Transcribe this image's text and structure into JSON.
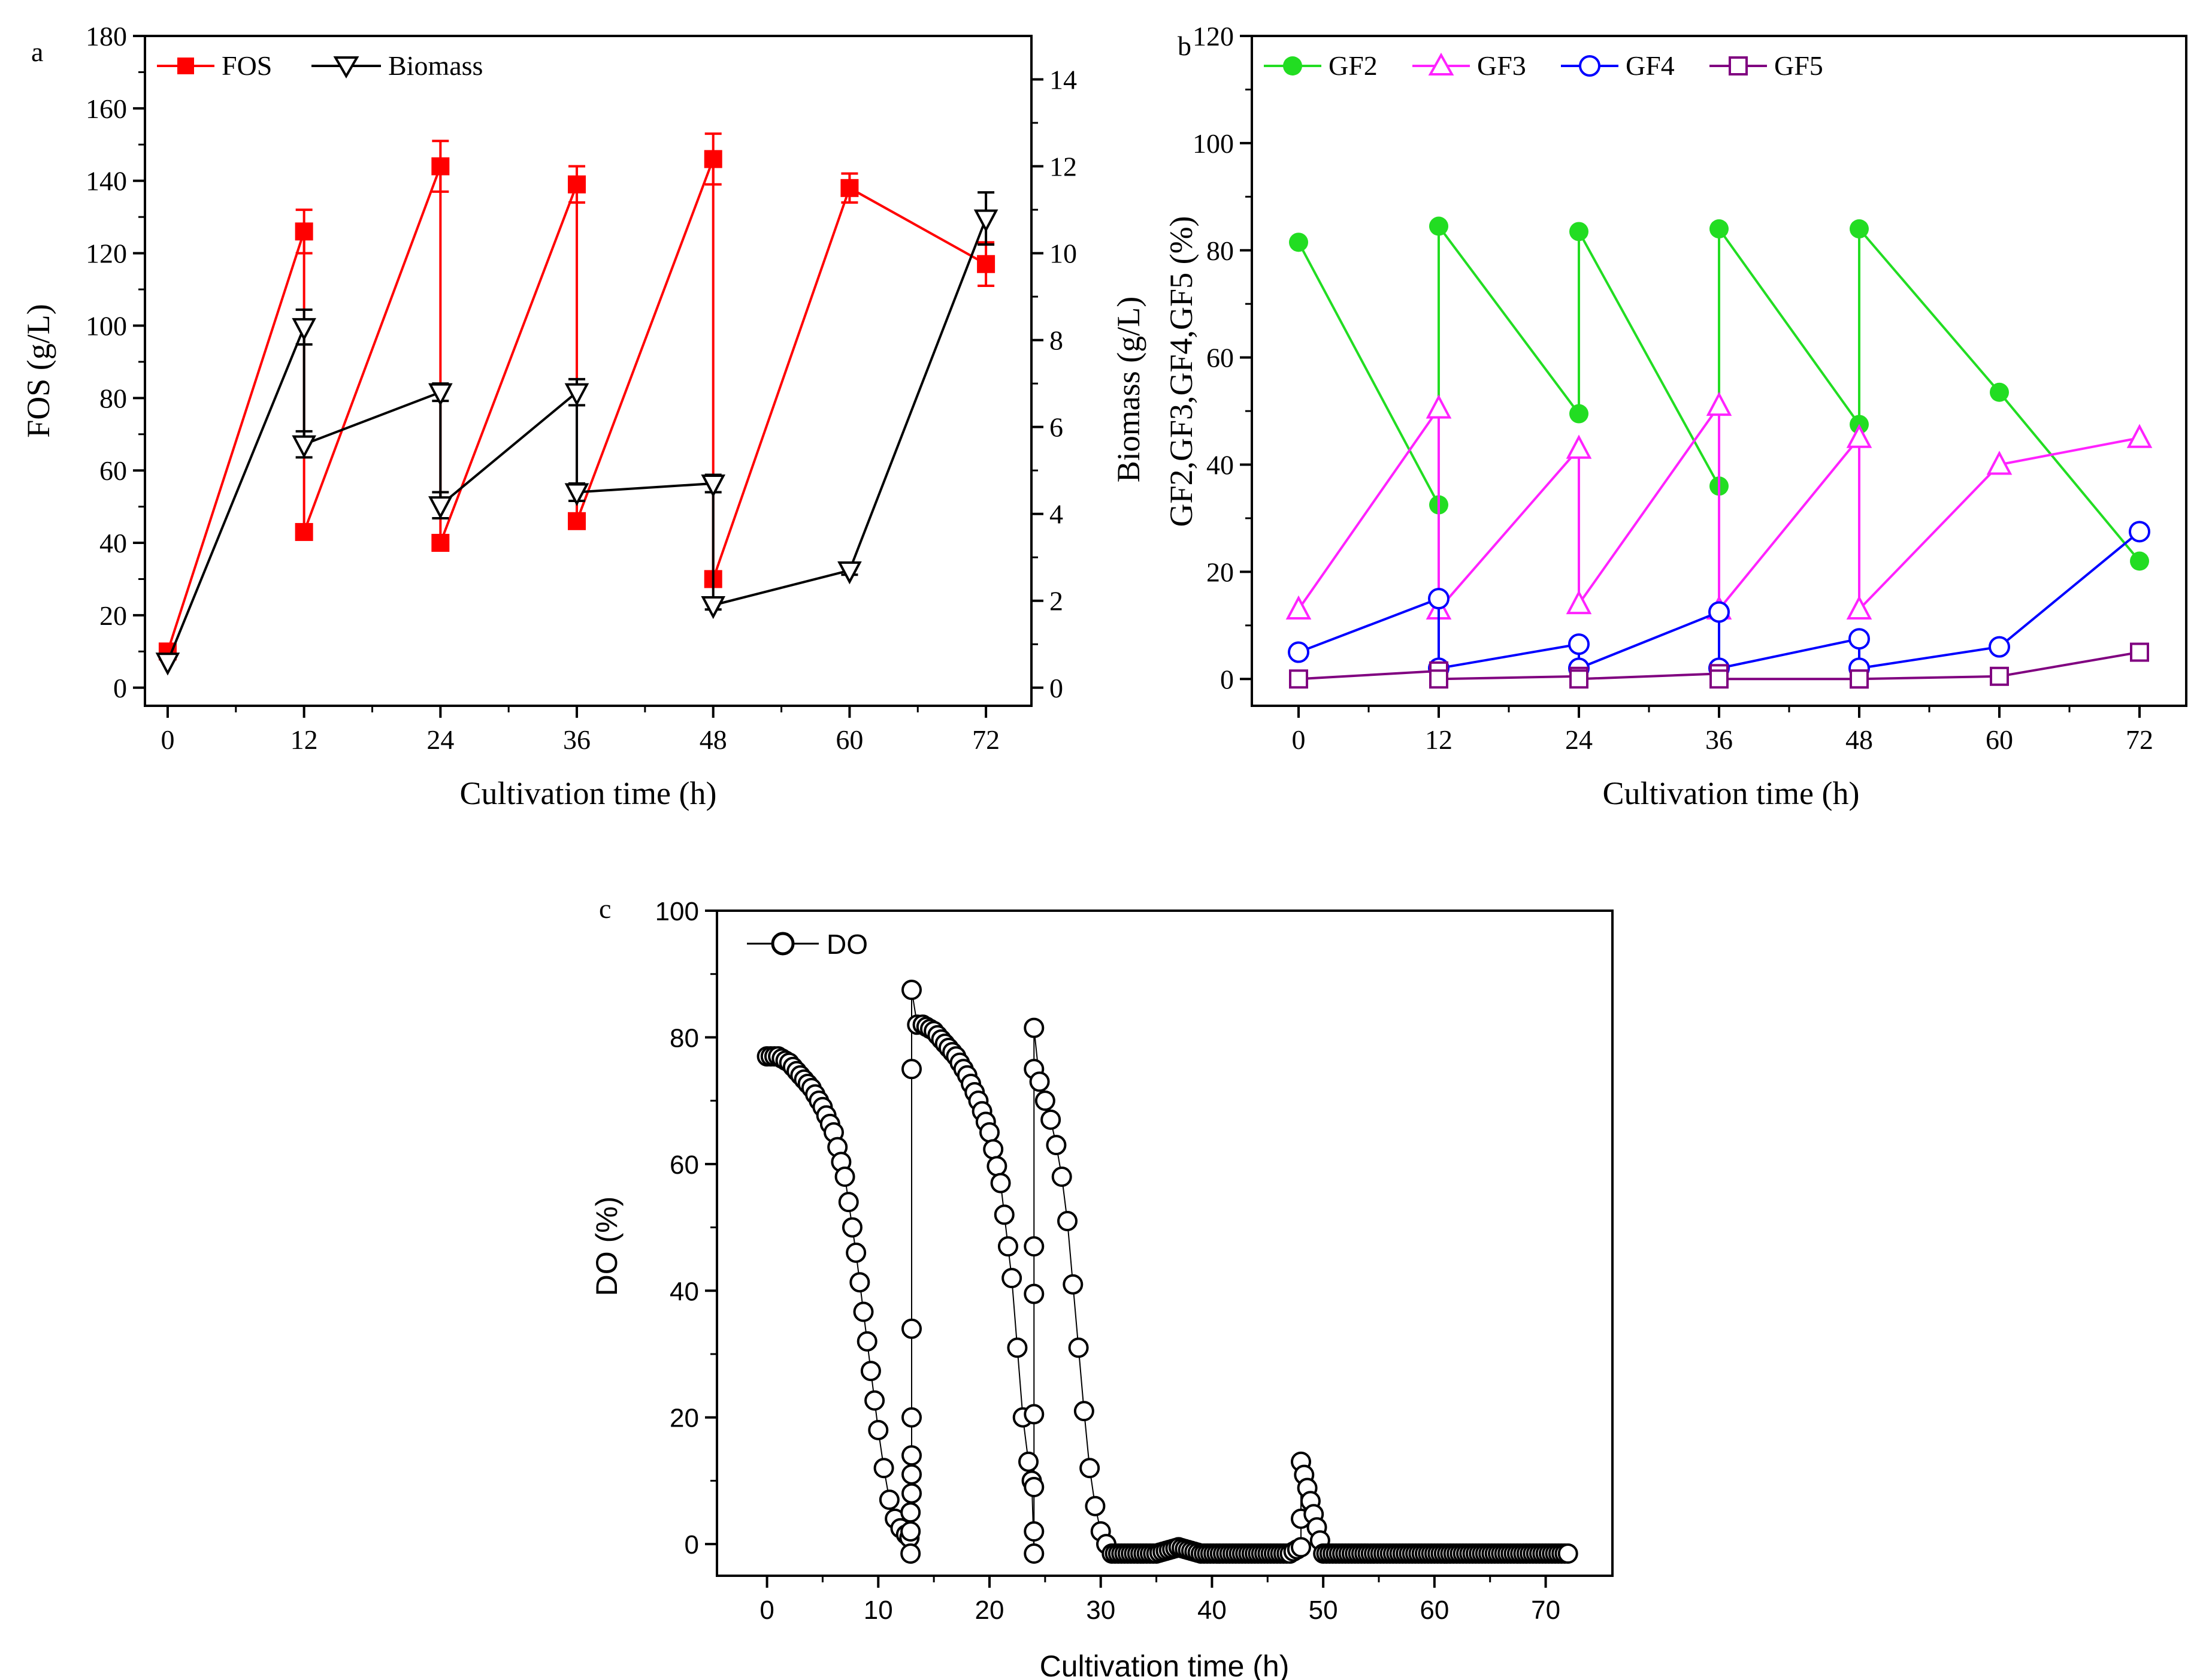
{
  "chart_data": [
    {
      "panel": "a",
      "type": "line",
      "xlabel": "Cultivation time (h)",
      "ylabel": "FOS (g/L)",
      "y2label": "Biomass (g/L)",
      "xlim": [
        -2,
        76
      ],
      "ylim": [
        -5,
        180
      ],
      "y2lim": [
        -0.4167,
        15
      ],
      "xticks": [
        "0",
        "12",
        "24",
        "36",
        "48",
        "60",
        "72"
      ],
      "xtick_values": [
        0,
        12,
        24,
        36,
        48,
        60,
        72
      ],
      "yticks": [
        "0",
        "20",
        "40",
        "60",
        "80",
        "100",
        "120",
        "140",
        "160",
        "180"
      ],
      "ytick_values": [
        0,
        20,
        40,
        60,
        80,
        100,
        120,
        140,
        160,
        180
      ],
      "y2ticks": [
        "0",
        "2",
        "4",
        "6",
        "8",
        "10",
        "12",
        "14"
      ],
      "y2tick_values": [
        0,
        2,
        4,
        6,
        8,
        10,
        12,
        14
      ],
      "legend_position": "top-left",
      "series": [
        {
          "name": "FOS",
          "axis": "left",
          "color": "#ff0000",
          "marker": "filled-square",
          "points": [
            [
              0,
              10,
              0
            ],
            [
              12,
              126,
              6
            ],
            [
              12,
              43,
              0
            ],
            [
              24,
              144,
              7
            ],
            [
              24,
              40,
              0
            ],
            [
              36,
              139,
              5
            ],
            [
              36,
              46,
              0
            ],
            [
              48,
              146,
              7
            ],
            [
              48,
              30,
              0
            ],
            [
              60,
              138,
              4
            ],
            [
              72,
              117,
              6
            ]
          ]
        },
        {
          "name": "Biomass",
          "axis": "right",
          "color": "#000000",
          "marker": "open-down-triangle",
          "points": [
            [
              0,
              0.6,
              0
            ],
            [
              12,
              8.3,
              0.4
            ],
            [
              12,
              5.6,
              0.3
            ],
            [
              24,
              6.8,
              0.2
            ],
            [
              24,
              4.2,
              0.3
            ],
            [
              36,
              6.8,
              0.3
            ],
            [
              36,
              4.5,
              0.2
            ],
            [
              48,
              4.7,
              0.2
            ],
            [
              48,
              1.9,
              0.1
            ],
            [
              60,
              2.7,
              0.1
            ],
            [
              72,
              10.8,
              0.6
            ]
          ]
        }
      ]
    },
    {
      "panel": "b",
      "type": "line",
      "xlabel": "Cultivation time (h)",
      "ylabel": "GF2,GF3,GF4,GF5 (%)",
      "xlim": [
        -4,
        76
      ],
      "ylim": [
        -5,
        120
      ],
      "xticks": [
        "0",
        "12",
        "24",
        "36",
        "48",
        "60",
        "72"
      ],
      "xtick_values": [
        0,
        12,
        24,
        36,
        48,
        60,
        72
      ],
      "yticks": [
        "0",
        "20",
        "40",
        "60",
        "80",
        "100",
        "120"
      ],
      "ytick_values": [
        0,
        20,
        40,
        60,
        80,
        100,
        120
      ],
      "legend_position": "top",
      "series": [
        {
          "name": "GF2",
          "color": "#22dd22",
          "marker": "filled-circle",
          "points": [
            [
              0,
              81.5
            ],
            [
              12,
              32.5
            ],
            [
              12,
              84.5
            ],
            [
              24,
              49.5
            ],
            [
              24,
              83.5
            ],
            [
              36,
              36
            ],
            [
              36,
              84
            ],
            [
              48,
              47.5
            ],
            [
              48,
              84
            ],
            [
              60,
              53.5
            ],
            [
              72,
              22
            ]
          ]
        },
        {
          "name": "GF3",
          "color": "#ff22ff",
          "marker": "open-up-triangle",
          "points": [
            [
              0,
              13
            ],
            [
              12,
              50.5
            ],
            [
              12,
              13
            ],
            [
              24,
              43
            ],
            [
              24,
              14
            ],
            [
              36,
              51
            ],
            [
              36,
              13
            ],
            [
              48,
              45
            ],
            [
              48,
              13
            ],
            [
              60,
              40
            ],
            [
              72,
              45
            ]
          ]
        },
        {
          "name": "GF4",
          "color": "#0000ff",
          "marker": "open-circle",
          "points": [
            [
              0,
              5
            ],
            [
              12,
              15
            ],
            [
              12,
              2
            ],
            [
              24,
              6.5
            ],
            [
              24,
              2
            ],
            [
              36,
              12.5
            ],
            [
              36,
              2
            ],
            [
              48,
              7.5
            ],
            [
              48,
              2
            ],
            [
              60,
              6
            ],
            [
              72,
              27.5
            ]
          ]
        },
        {
          "name": "GF5",
          "color": "#800080",
          "marker": "open-square",
          "points": [
            [
              0,
              0
            ],
            [
              12,
              1.5
            ],
            [
              12,
              0
            ],
            [
              24,
              0.5
            ],
            [
              24,
              0
            ],
            [
              36,
              1
            ],
            [
              36,
              0
            ],
            [
              48,
              0
            ],
            [
              48,
              0
            ],
            [
              60,
              0.5
            ],
            [
              72,
              5
            ]
          ]
        }
      ]
    },
    {
      "panel": "c",
      "type": "scatter",
      "xlabel": "Cultivation time (h)",
      "ylabel": "DO (%)",
      "xlim": [
        -4.5,
        76
      ],
      "ylim": [
        -5,
        100
      ],
      "xticks": [
        "0",
        "10",
        "20",
        "30",
        "40",
        "50",
        "60",
        "70"
      ],
      "xtick_values": [
        0,
        10,
        20,
        30,
        40,
        50,
        60,
        70
      ],
      "yticks": [
        "0",
        "20",
        "40",
        "60",
        "80",
        "100"
      ],
      "ytick_values": [
        0,
        20,
        40,
        60,
        80,
        100
      ],
      "legend_position": "top-left",
      "series": [
        {
          "name": "DO",
          "color": "#000000",
          "marker": "open-circle",
          "points": [
            [
              0,
              77
            ],
            [
              1,
              77
            ],
            [
              2,
              76
            ],
            [
              3,
              74
            ],
            [
              4,
              72
            ],
            [
              5,
              69
            ],
            [
              6,
              65
            ],
            [
              7,
              58
            ],
            [
              8,
              46
            ],
            [
              9,
              32
            ],
            [
              10,
              18
            ],
            [
              10.5,
              12
            ],
            [
              11,
              7
            ],
            [
              11.5,
              4
            ],
            [
              12,
              2.5
            ],
            [
              12.5,
              1.5
            ],
            [
              12.8,
              1
            ],
            [
              12.9,
              -1.5
            ],
            [
              12.9,
              2
            ],
            [
              12.9,
              5
            ],
            [
              13,
              8
            ],
            [
              13,
              11
            ],
            [
              13,
              14
            ],
            [
              13,
              20
            ],
            [
              13,
              34
            ],
            [
              13,
              75
            ],
            [
              13,
              87.5
            ],
            [
              13.5,
              82
            ],
            [
              14,
              82
            ],
            [
              15,
              81
            ],
            [
              16,
              79
            ],
            [
              17,
              77
            ],
            [
              18,
              74
            ],
            [
              19,
              70
            ],
            [
              20,
              65
            ],
            [
              21,
              57
            ],
            [
              22,
              42
            ],
            [
              22.5,
              31
            ],
            [
              23,
              20
            ],
            [
              23.5,
              13
            ],
            [
              23.8,
              10
            ],
            [
              24,
              -1.5
            ],
            [
              24,
              2
            ],
            [
              24,
              9
            ],
            [
              24,
              20.5
            ],
            [
              24,
              39.5
            ],
            [
              24,
              47
            ],
            [
              24,
              75
            ],
            [
              24,
              81.5
            ],
            [
              24.5,
              73
            ],
            [
              25,
              70
            ],
            [
              25.5,
              67
            ],
            [
              26,
              63
            ],
            [
              26.5,
              58
            ],
            [
              27,
              51
            ],
            [
              27.5,
              41
            ],
            [
              28,
              31
            ],
            [
              28.5,
              21
            ],
            [
              29,
              12
            ],
            [
              29.5,
              6
            ],
            [
              30,
              2
            ],
            [
              30.5,
              0
            ],
            [
              31,
              -1.5
            ],
            [
              33,
              -1.5
            ],
            [
              35,
              -1.5
            ],
            [
              37,
              -0.5
            ],
            [
              39,
              -1.5
            ],
            [
              41,
              -1.5
            ],
            [
              43,
              -1.5
            ],
            [
              45,
              -1.5
            ],
            [
              47,
              -1.5
            ],
            [
              48,
              -0.5
            ],
            [
              48,
              4
            ],
            [
              48,
              13
            ],
            [
              50,
              -1.5
            ],
            [
              52,
              -1.5
            ],
            [
              54,
              -1.5
            ],
            [
              56,
              -1.5
            ],
            [
              58,
              -1.5
            ],
            [
              60,
              -1.5
            ],
            [
              62,
              -1.5
            ],
            [
              64,
              -1.5
            ],
            [
              66,
              -1.5
            ],
            [
              68,
              -1.5
            ],
            [
              70,
              -1.5
            ],
            [
              72,
              -1.5
            ]
          ]
        }
      ]
    }
  ],
  "panels": {
    "a": {
      "letter": "a",
      "xlabel": "Cultivation time (h)",
      "ylabel": "FOS (g/L)",
      "y2label": "Biomass (g/L)",
      "legend": [
        "FOS",
        "Biomass"
      ]
    },
    "b": {
      "letter": "b",
      "xlabel": "Cultivation time (h)",
      "ylabel": "GF2,GF3,GF4,GF5 (%)",
      "legend": [
        "GF2",
        "GF3",
        "GF4",
        "GF5"
      ]
    },
    "c": {
      "letter": "c",
      "xlabel": "Cultivation time (h)",
      "ylabel": "DO (%)",
      "legend": [
        "DO"
      ]
    }
  }
}
